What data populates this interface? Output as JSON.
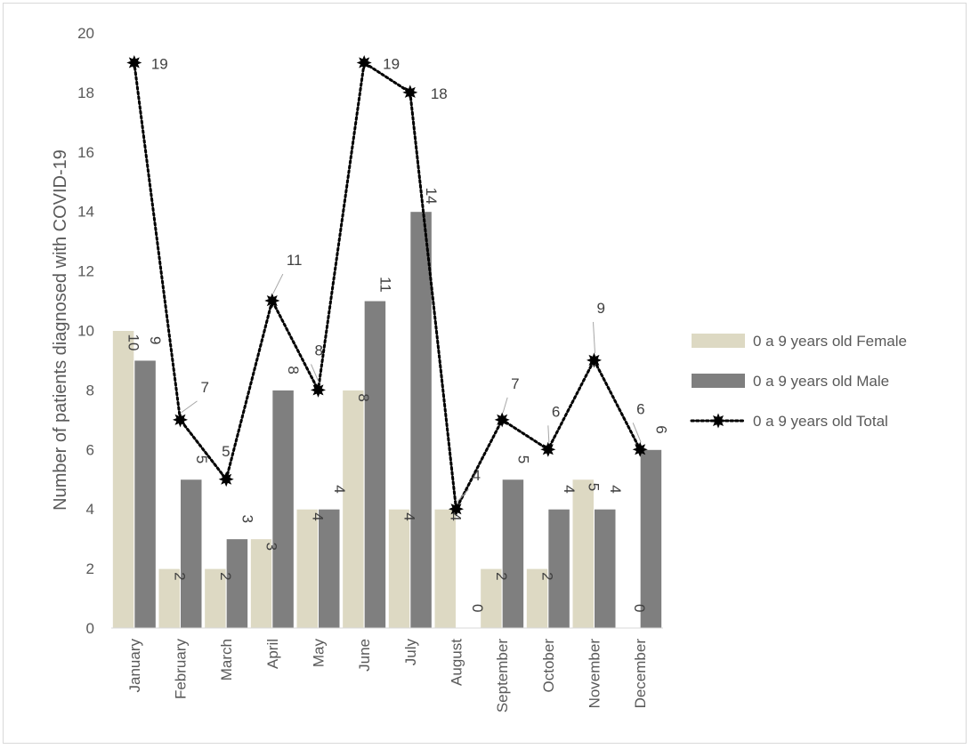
{
  "chart_data": {
    "type": "bar",
    "categories": [
      "January",
      "February",
      "March",
      "April",
      "May",
      "June",
      "July",
      "August",
      "September",
      "October",
      "November",
      "December"
    ],
    "series": [
      {
        "name": "0 a 9 years old Female",
        "type": "bar",
        "color": "#ddd9c3",
        "values": [
          10,
          2,
          2,
          3,
          4,
          8,
          4,
          4,
          2,
          2,
          5,
          0
        ]
      },
      {
        "name": "0 a 9 years old Male",
        "type": "bar",
        "color": "#7f7f7f",
        "values": [
          9,
          5,
          3,
          8,
          4,
          11,
          14,
          0,
          5,
          4,
          4,
          6
        ]
      },
      {
        "name": "0 a 9 years old Total",
        "type": "line",
        "style": "dotted",
        "marker": "star",
        "color": "#000000",
        "values": [
          19,
          7,
          5,
          11,
          8,
          19,
          18,
          4,
          7,
          6,
          9,
          6
        ]
      }
    ],
    "ylabel": "Number of patients diagnosed with COVID-19",
    "xlabel": "",
    "ylim": [
      0,
      20
    ],
    "yticks": [
      0,
      2,
      4,
      6,
      8,
      10,
      12,
      14,
      16,
      18,
      20
    ],
    "grid": false,
    "legend_position": "right"
  }
}
